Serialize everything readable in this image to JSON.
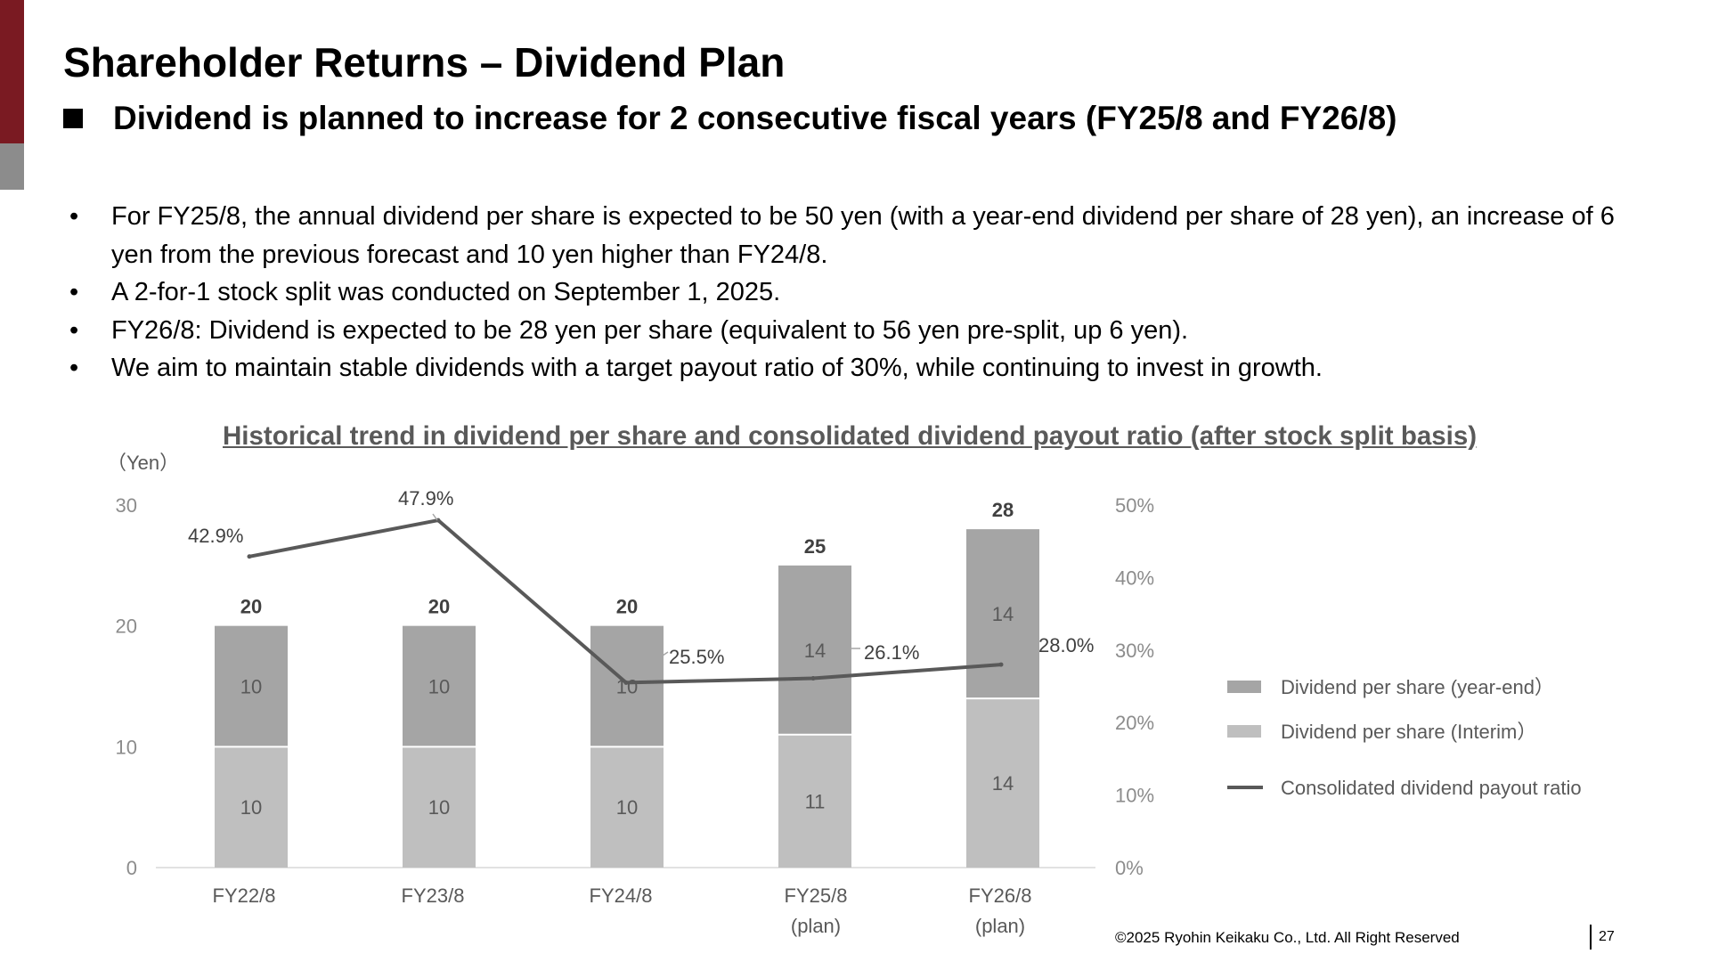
{
  "slide": {
    "title": "Shareholder Returns – Dividend Plan",
    "subtitle": "Dividend is planned to increase for 2 consecutive fiscal years (FY25/8 and FY26/8)",
    "bullet_symbol": "•",
    "bullets": [
      "For FY25/8, the annual dividend per share is expected to be 50 yen (with a year-end dividend per share of 28 yen), an increase of 6 yen from the previous forecast and 10 yen higher than FY24/8.",
      "A 2-for-1 stock split was conducted on September 1, 2025.",
      "FY26/8: Dividend is expected to be 28 yen per share (equivalent to 56 yen pre-split, up 6 yen).",
      "We aim to maintain stable dividends with a target payout ratio of 30%, while continuing to invest in growth."
    ],
    "footer": "©2025 Ryohin Keikaku Co., Ltd. All Right Reserved",
    "page_number": "27"
  },
  "chart_data": {
    "type": "bar",
    "stacked": true,
    "title": "Historical trend in dividend per share and consolidated dividend payout ratio (after stock split basis)",
    "ylabel": "（Yen）",
    "ylim": [
      0,
      30
    ],
    "yticks": [
      "0",
      "10",
      "20",
      "30"
    ],
    "y2lim": [
      0,
      50
    ],
    "y2ticks": [
      "0%",
      "10%",
      "20%",
      "30%",
      "40%",
      "50%"
    ],
    "categories": [
      [
        "FY22/8"
      ],
      [
        "FY23/8"
      ],
      [
        "FY24/8"
      ],
      [
        "FY25/8",
        "(plan)"
      ],
      [
        "FY26/8",
        "(plan)"
      ]
    ],
    "series": [
      {
        "name": "Dividend per share (Interim）",
        "values": [
          10,
          10,
          10,
          11,
          14
        ],
        "color": "#bfbfbf"
      },
      {
        "name": "Dividend per share (year-end）",
        "values": [
          10,
          10,
          10,
          14,
          14
        ],
        "color": "#a5a5a5"
      }
    ],
    "totals": [
      20,
      20,
      20,
      25,
      28
    ],
    "line": {
      "name": "Consolidated dividend payout ratio",
      "values": [
        42.9,
        47.9,
        25.5,
        26.1,
        28.0
      ],
      "labels": [
        "42.9%",
        "47.9%",
        "25.5%",
        "26.1%",
        "28.0%"
      ],
      "color": "#595959"
    },
    "legend_position": "right",
    "grid": false
  }
}
